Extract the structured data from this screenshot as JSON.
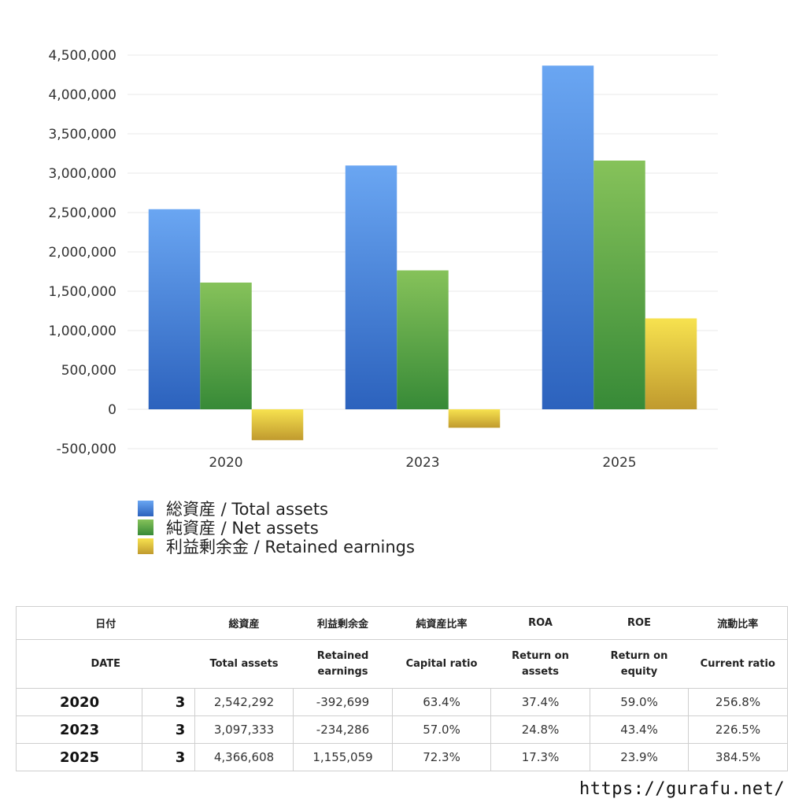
{
  "chart_data": {
    "type": "bar",
    "categories": [
      "2020",
      "2023",
      "2025"
    ],
    "series": [
      {
        "name": "総資産 / Total assets",
        "values": [
          2542292,
          3097333,
          4366608
        ],
        "color_top": "#6aa6f2",
        "color_bottom": "#2c62bd"
      },
      {
        "name": "純資産 / Net assets",
        "values": [
          1610000,
          1765000,
          3160000
        ],
        "color_top": "#86c25a",
        "color_bottom": "#378a37"
      },
      {
        "name": "利益剰余金 / Retained earnings",
        "values": [
          -392699,
          -234286,
          1155059
        ],
        "color_top": "#f7e24f",
        "color_bottom": "#c09a2e"
      }
    ],
    "ylim": [
      -500000,
      4500000
    ],
    "yticks": [
      -500000,
      0,
      500000,
      1000000,
      1500000,
      2000000,
      2500000,
      3000000,
      3500000,
      4000000,
      4500000
    ],
    "ytick_labels": [
      "-500,000",
      "0",
      "500,000",
      "1,000,000",
      "1,500,000",
      "2,000,000",
      "2,500,000",
      "3,000,000",
      "3,500,000",
      "4,000,000",
      "4,500,000"
    ],
    "grid": true,
    "legend_position": "bottom-left"
  },
  "legend": [
    {
      "label": "総資産 / Total assets"
    },
    {
      "label": "純資産 / Net assets"
    },
    {
      "label": "利益剰余金 / Retained earnings"
    }
  ],
  "table": {
    "header_jp": [
      "日付",
      "総資産",
      "利益剰余金",
      "純資産比率",
      "ROA",
      "ROE",
      "流動比率"
    ],
    "header_en": [
      "DATE",
      "Total assets",
      "Retained earnings",
      "Capital ratio",
      "Return on assets",
      "Return on equity",
      "Current ratio"
    ],
    "rows": [
      {
        "year": "2020",
        "period": "3",
        "total_assets": "2,542,292",
        "retained": "-392,699",
        "capital_ratio": "63.4%",
        "roa": "37.4%",
        "roe": "59.0%",
        "current_ratio": "256.8%"
      },
      {
        "year": "2023",
        "period": "3",
        "total_assets": "3,097,333",
        "retained": "-234,286",
        "capital_ratio": "57.0%",
        "roa": "24.8%",
        "roe": "43.4%",
        "current_ratio": "226.5%"
      },
      {
        "year": "2025",
        "period": "3",
        "total_assets": "4,366,608",
        "retained": "1,155,059",
        "capital_ratio": "72.3%",
        "roa": "17.3%",
        "roe": "23.9%",
        "current_ratio": "384.5%"
      }
    ],
    "negative_color": "#d9532b"
  },
  "watermark": "https://gurafu.net/"
}
